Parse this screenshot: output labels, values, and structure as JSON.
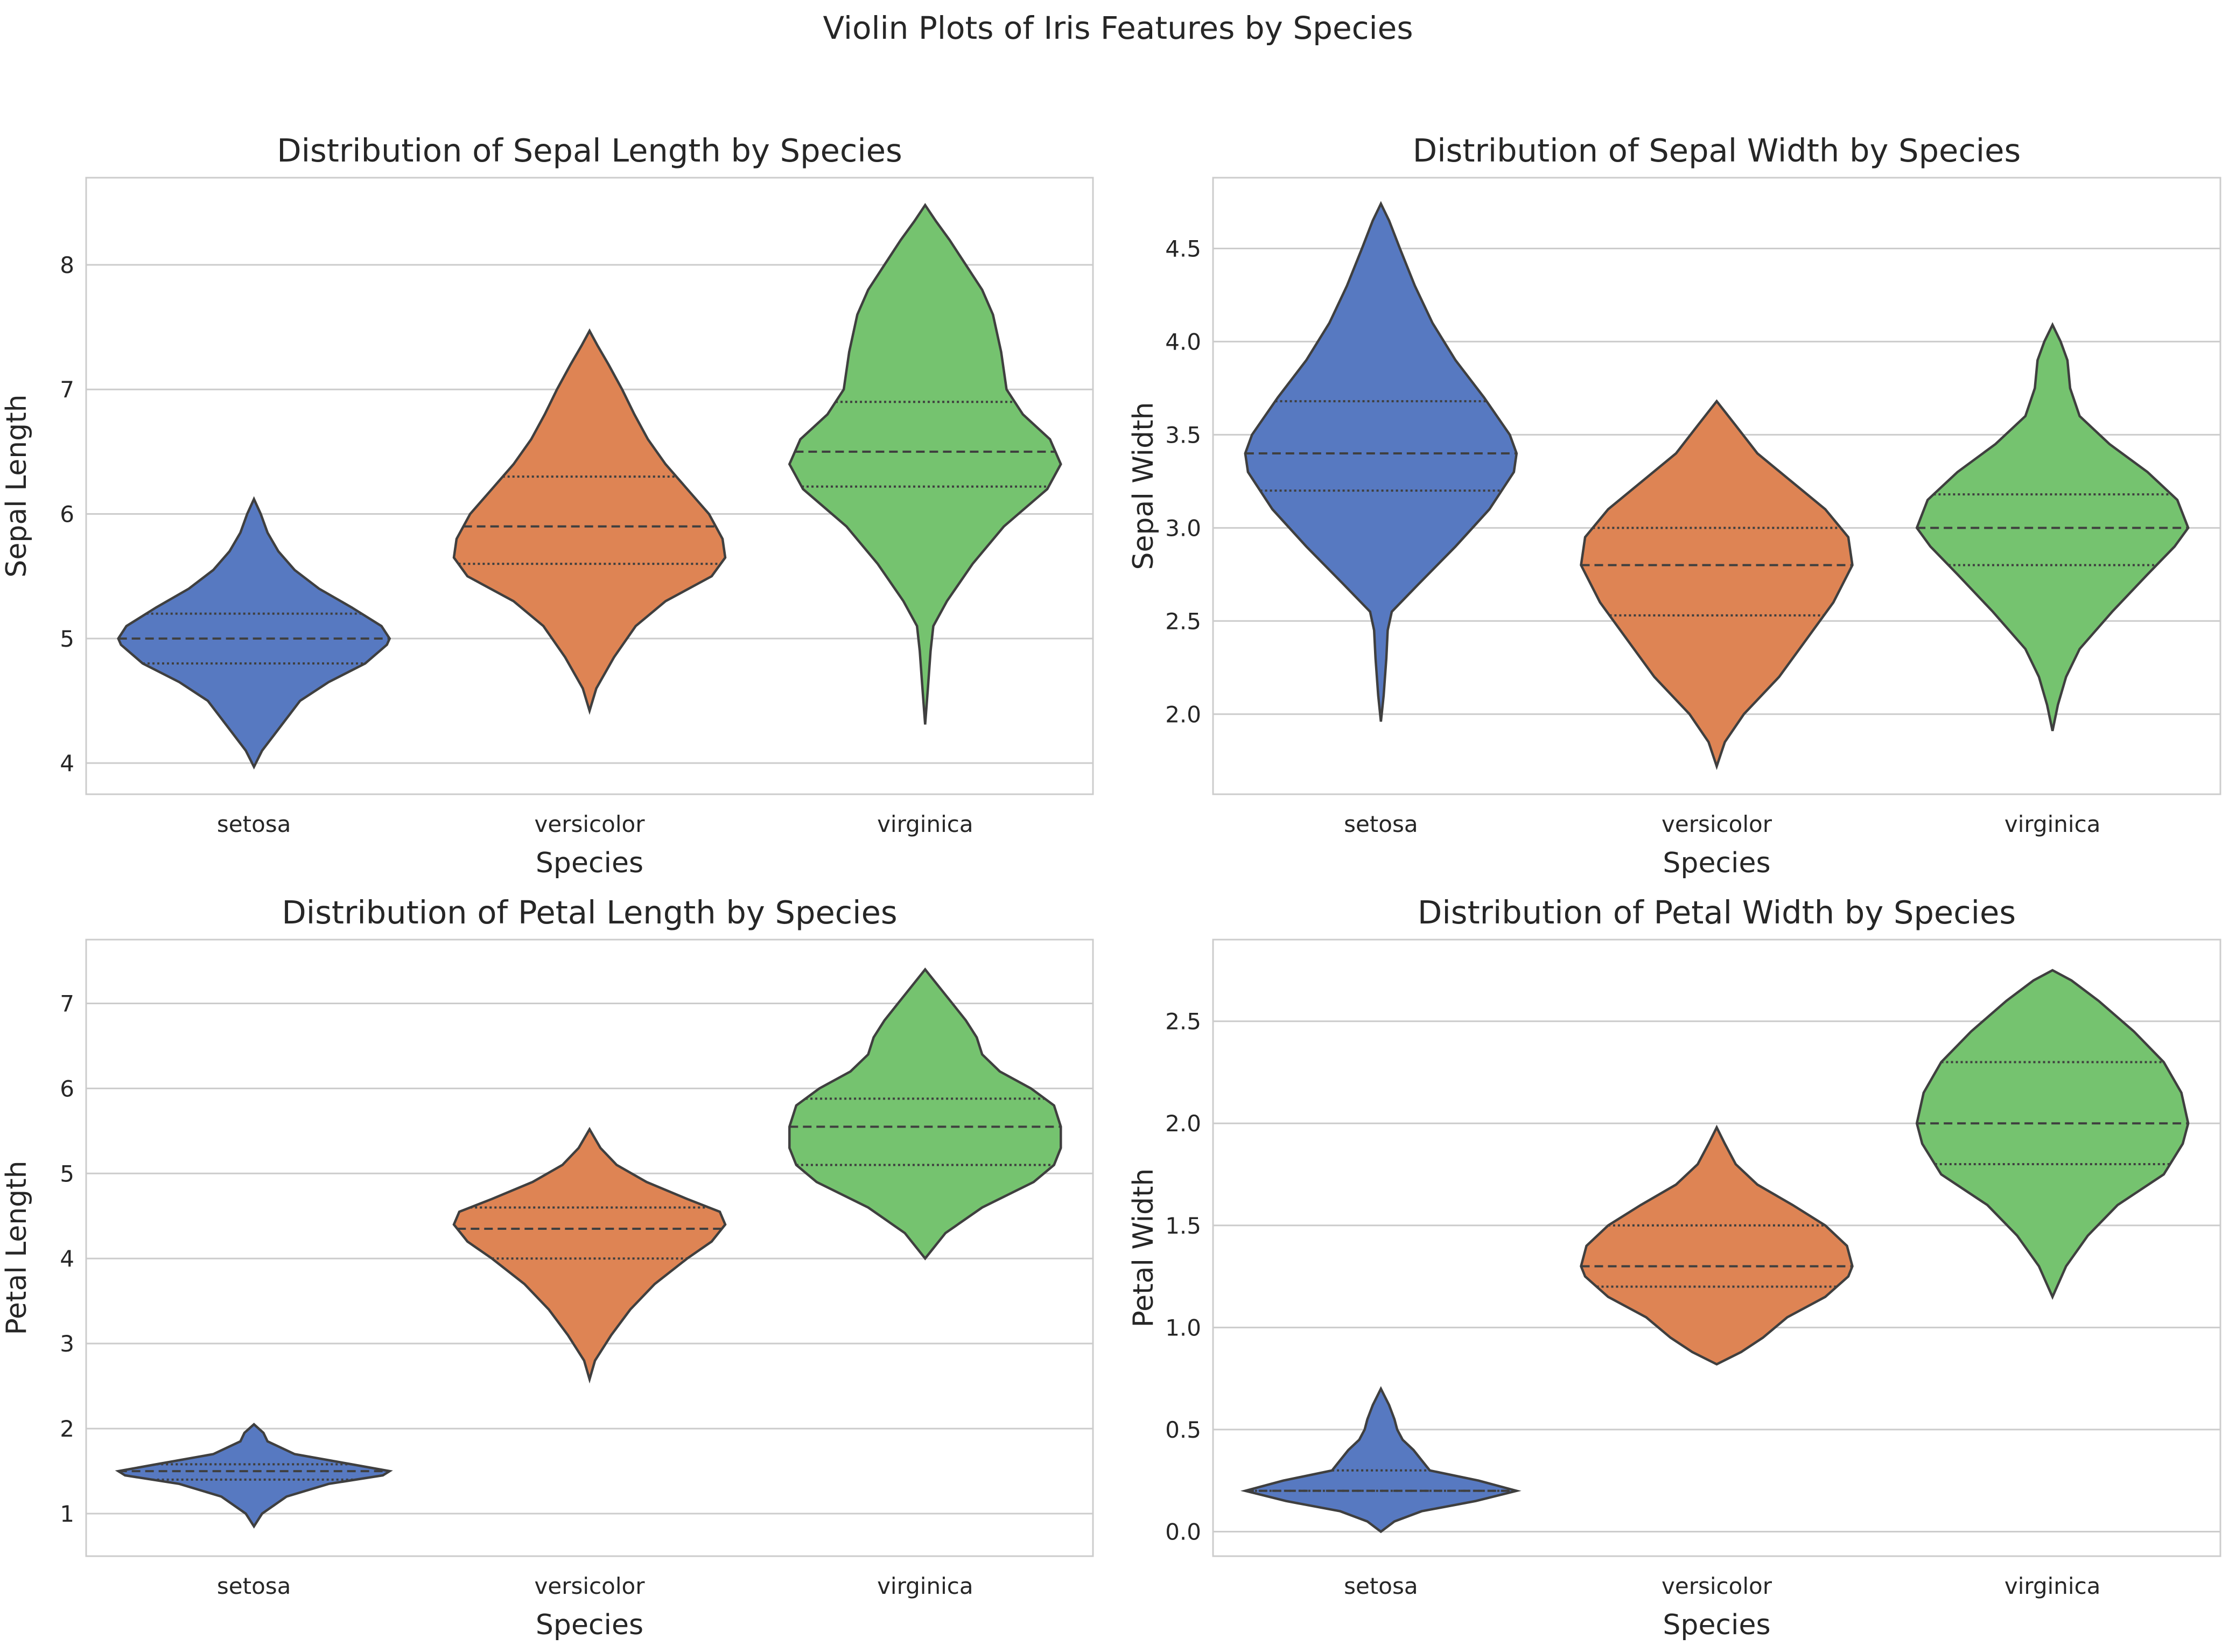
{
  "suptitle": "Violin Plots of Iris Features by Species",
  "colors": {
    "setosa": "#5779c1",
    "versicolor": "#de8454",
    "virginica": "#75c36f"
  },
  "chart_data": [
    {
      "type": "violin",
      "title": "Distribution of Sepal Length by Species",
      "xlabel": "Species",
      "ylabel": "Sepal Length",
      "categories": [
        "setosa",
        "versicolor",
        "virginica"
      ],
      "ylim": [
        3.75,
        8.7
      ],
      "yticks": [
        4,
        5,
        6,
        7,
        8
      ],
      "yticklabels": [
        "4",
        "5",
        "6",
        "7",
        "8"
      ],
      "grid": true,
      "violins": [
        {
          "name": "setosa",
          "q1": 4.8,
          "median": 5.0,
          "q3": 5.2,
          "profile": [
            [
              3.97,
              0
            ],
            [
              4.1,
              0.06
            ],
            [
              4.3,
              0.2
            ],
            [
              4.5,
              0.34
            ],
            [
              4.65,
              0.55
            ],
            [
              4.8,
              0.82
            ],
            [
              4.95,
              0.98
            ],
            [
              5.0,
              1.0
            ],
            [
              5.1,
              0.94
            ],
            [
              5.25,
              0.72
            ],
            [
              5.4,
              0.48
            ],
            [
              5.55,
              0.3
            ],
            [
              5.7,
              0.18
            ],
            [
              5.85,
              0.1
            ],
            [
              6.0,
              0.05
            ],
            [
              6.12,
              0
            ]
          ]
        },
        {
          "name": "versicolor",
          "q1": 5.6,
          "median": 5.9,
          "q3": 6.3,
          "profile": [
            [
              4.42,
              0
            ],
            [
              4.6,
              0.05
            ],
            [
              4.85,
              0.18
            ],
            [
              5.1,
              0.34
            ],
            [
              5.3,
              0.56
            ],
            [
              5.5,
              0.9
            ],
            [
              5.65,
              1.0
            ],
            [
              5.8,
              0.98
            ],
            [
              6.0,
              0.88
            ],
            [
              6.2,
              0.72
            ],
            [
              6.4,
              0.56
            ],
            [
              6.6,
              0.43
            ],
            [
              6.8,
              0.33
            ],
            [
              7.0,
              0.24
            ],
            [
              7.2,
              0.14
            ],
            [
              7.35,
              0.06
            ],
            [
              7.47,
              0
            ]
          ]
        },
        {
          "name": "virginica",
          "q1": 6.22,
          "median": 6.5,
          "q3": 6.9,
          "profile": [
            [
              4.31,
              0
            ],
            [
              4.6,
              0.02
            ],
            [
              4.9,
              0.04
            ],
            [
              5.1,
              0.06
            ],
            [
              5.3,
              0.16
            ],
            [
              5.6,
              0.35
            ],
            [
              5.9,
              0.58
            ],
            [
              6.2,
              0.9
            ],
            [
              6.4,
              1.0
            ],
            [
              6.6,
              0.92
            ],
            [
              6.8,
              0.72
            ],
            [
              7.0,
              0.6
            ],
            [
              7.3,
              0.56
            ],
            [
              7.6,
              0.5
            ],
            [
              7.8,
              0.42
            ],
            [
              8.0,
              0.3
            ],
            [
              8.2,
              0.18
            ],
            [
              8.35,
              0.08
            ],
            [
              8.48,
              0
            ]
          ]
        }
      ]
    },
    {
      "type": "violin",
      "title": "Distribution of Sepal Width by Species",
      "xlabel": "Species",
      "ylabel": "Sepal Width",
      "categories": [
        "setosa",
        "versicolor",
        "virginica"
      ],
      "ylim": [
        1.57,
        4.88
      ],
      "yticks": [
        2.0,
        2.5,
        3.0,
        3.5,
        4.0,
        4.5
      ],
      "yticklabels": [
        "2.0",
        "2.5",
        "3.0",
        "3.5",
        "4.0",
        "4.5"
      ],
      "grid": true,
      "violins": [
        {
          "name": "setosa",
          "q1": 3.2,
          "median": 3.4,
          "q3": 3.68,
          "profile": [
            [
              1.96,
              0
            ],
            [
              2.1,
              0.02
            ],
            [
              2.3,
              0.04
            ],
            [
              2.45,
              0.05
            ],
            [
              2.55,
              0.08
            ],
            [
              2.7,
              0.28
            ],
            [
              2.9,
              0.55
            ],
            [
              3.1,
              0.8
            ],
            [
              3.3,
              0.98
            ],
            [
              3.4,
              1.0
            ],
            [
              3.5,
              0.95
            ],
            [
              3.7,
              0.76
            ],
            [
              3.9,
              0.55
            ],
            [
              4.1,
              0.38
            ],
            [
              4.3,
              0.25
            ],
            [
              4.5,
              0.14
            ],
            [
              4.65,
              0.06
            ],
            [
              4.74,
              0
            ]
          ]
        },
        {
          "name": "versicolor",
          "q1": 2.53,
          "median": 2.8,
          "q3": 3.0,
          "profile": [
            [
              1.72,
              0
            ],
            [
              1.85,
              0.06
            ],
            [
              2.0,
              0.2
            ],
            [
              2.2,
              0.46
            ],
            [
              2.4,
              0.66
            ],
            [
              2.6,
              0.86
            ],
            [
              2.8,
              1.0
            ],
            [
              2.95,
              0.97
            ],
            [
              3.1,
              0.8
            ],
            [
              3.25,
              0.55
            ],
            [
              3.4,
              0.3
            ],
            [
              3.55,
              0.14
            ],
            [
              3.68,
              0
            ]
          ]
        },
        {
          "name": "virginica",
          "q1": 2.8,
          "median": 3.0,
          "q3": 3.18,
          "profile": [
            [
              1.91,
              0
            ],
            [
              2.05,
              0.04
            ],
            [
              2.2,
              0.1
            ],
            [
              2.35,
              0.2
            ],
            [
              2.55,
              0.44
            ],
            [
              2.75,
              0.7
            ],
            [
              2.9,
              0.9
            ],
            [
              3.0,
              1.0
            ],
            [
              3.15,
              0.92
            ],
            [
              3.3,
              0.7
            ],
            [
              3.45,
              0.42
            ],
            [
              3.6,
              0.2
            ],
            [
              3.75,
              0.13
            ],
            [
              3.9,
              0.11
            ],
            [
              4.0,
              0.06
            ],
            [
              4.09,
              0
            ]
          ]
        }
      ]
    },
    {
      "type": "violin",
      "title": "Distribution of Petal Length by Species",
      "xlabel": "Species",
      "ylabel": "Petal Length",
      "categories": [
        "setosa",
        "versicolor",
        "virginica"
      ],
      "ylim": [
        0.5,
        7.75
      ],
      "yticks": [
        1,
        2,
        3,
        4,
        5,
        6,
        7
      ],
      "yticklabels": [
        "1",
        "2",
        "3",
        "4",
        "5",
        "6",
        "7"
      ],
      "grid": true,
      "violins": [
        {
          "name": "setosa",
          "q1": 1.4,
          "median": 1.5,
          "q3": 1.58,
          "profile": [
            [
              0.85,
              0
            ],
            [
              1.0,
              0.06
            ],
            [
              1.2,
              0.24
            ],
            [
              1.35,
              0.55
            ],
            [
              1.45,
              0.95
            ],
            [
              1.5,
              1.0
            ],
            [
              1.58,
              0.72
            ],
            [
              1.7,
              0.3
            ],
            [
              1.85,
              0.1
            ],
            [
              1.95,
              0.07
            ],
            [
              2.05,
              0
            ]
          ]
        },
        {
          "name": "versicolor",
          "q1": 4.0,
          "median": 4.35,
          "q3": 4.6,
          "profile": [
            [
              2.58,
              0
            ],
            [
              2.8,
              0.04
            ],
            [
              3.1,
              0.16
            ],
            [
              3.4,
              0.3
            ],
            [
              3.7,
              0.48
            ],
            [
              4.0,
              0.72
            ],
            [
              4.2,
              0.9
            ],
            [
              4.4,
              1.0
            ],
            [
              4.55,
              0.96
            ],
            [
              4.7,
              0.72
            ],
            [
              4.9,
              0.42
            ],
            [
              5.1,
              0.2
            ],
            [
              5.3,
              0.08
            ],
            [
              5.52,
              0
            ]
          ]
        },
        {
          "name": "virginica",
          "q1": 5.1,
          "median": 5.55,
          "q3": 5.88,
          "profile": [
            [
              4.0,
              0
            ],
            [
              4.3,
              0.15
            ],
            [
              4.6,
              0.42
            ],
            [
              4.9,
              0.8
            ],
            [
              5.1,
              0.95
            ],
            [
              5.3,
              1.0
            ],
            [
              5.55,
              1.0
            ],
            [
              5.8,
              0.95
            ],
            [
              6.0,
              0.78
            ],
            [
              6.2,
              0.55
            ],
            [
              6.4,
              0.42
            ],
            [
              6.6,
              0.38
            ],
            [
              6.8,
              0.3
            ],
            [
              7.0,
              0.2
            ],
            [
              7.2,
              0.1
            ],
            [
              7.4,
              0
            ]
          ]
        }
      ]
    },
    {
      "type": "violin",
      "title": "Distribution of Petal Width by Species",
      "xlabel": "Species",
      "ylabel": "Petal Width",
      "categories": [
        "setosa",
        "versicolor",
        "virginica"
      ],
      "ylim": [
        -0.12,
        2.9
      ],
      "yticks": [
        0.0,
        0.5,
        1.0,
        1.5,
        2.0,
        2.5
      ],
      "yticklabels": [
        "0.0",
        "0.5",
        "1.0",
        "1.5",
        "2.0",
        "2.5"
      ],
      "grid": true,
      "violins": [
        {
          "name": "setosa",
          "q1": 0.2,
          "median": 0.2,
          "q3": 0.3,
          "profile": [
            [
              0.0,
              0
            ],
            [
              0.05,
              0.1
            ],
            [
              0.1,
              0.3
            ],
            [
              0.15,
              0.7
            ],
            [
              0.2,
              1.0
            ],
            [
              0.25,
              0.72
            ],
            [
              0.3,
              0.36
            ],
            [
              0.35,
              0.3
            ],
            [
              0.4,
              0.24
            ],
            [
              0.45,
              0.16
            ],
            [
              0.5,
              0.12
            ],
            [
              0.55,
              0.1
            ],
            [
              0.62,
              0.06
            ],
            [
              0.7,
              0
            ]
          ]
        },
        {
          "name": "versicolor",
          "q1": 1.2,
          "median": 1.3,
          "q3": 1.5,
          "profile": [
            [
              0.82,
              0
            ],
            [
              0.88,
              0.18
            ],
            [
              0.95,
              0.34
            ],
            [
              1.05,
              0.52
            ],
            [
              1.15,
              0.8
            ],
            [
              1.25,
              0.97
            ],
            [
              1.3,
              1.0
            ],
            [
              1.4,
              0.96
            ],
            [
              1.5,
              0.8
            ],
            [
              1.6,
              0.56
            ],
            [
              1.7,
              0.3
            ],
            [
              1.8,
              0.14
            ],
            [
              1.9,
              0.06
            ],
            [
              1.98,
              0
            ]
          ]
        },
        {
          "name": "virginica",
          "q1": 1.8,
          "median": 2.0,
          "q3": 2.3,
          "profile": [
            [
              1.15,
              0
            ],
            [
              1.3,
              0.1
            ],
            [
              1.45,
              0.26
            ],
            [
              1.6,
              0.48
            ],
            [
              1.75,
              0.82
            ],
            [
              1.9,
              0.96
            ],
            [
              2.0,
              1.0
            ],
            [
              2.15,
              0.95
            ],
            [
              2.3,
              0.82
            ],
            [
              2.45,
              0.6
            ],
            [
              2.6,
              0.34
            ],
            [
              2.7,
              0.14
            ],
            [
              2.75,
              0
            ]
          ]
        }
      ]
    }
  ]
}
